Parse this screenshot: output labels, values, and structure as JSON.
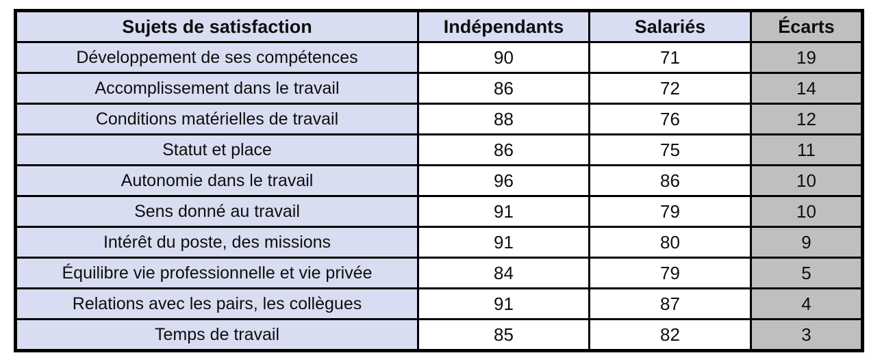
{
  "colors": {
    "header-bg": "#D9DDF1",
    "label-col-bg": "#D9DDF1",
    "value-col-bg": "#FFFFFF",
    "ecart-col-bg": "#BFBFBF",
    "border": "#000000",
    "text": "#0E0E0E"
  },
  "table": {
    "columns": [
      "Sujets de satisfaction",
      "Indépendants",
      "Salariés",
      "Écarts"
    ],
    "rows": [
      {
        "label": "Développement de ses compétences",
        "independants": "90",
        "salaries": "71",
        "ecart": "19"
      },
      {
        "label": "Accomplissement dans le travail",
        "independants": "86",
        "salaries": "72",
        "ecart": "14"
      },
      {
        "label": "Conditions matérielles de travail",
        "independants": "88",
        "salaries": "76",
        "ecart": "12"
      },
      {
        "label": "Statut et place",
        "independants": "86",
        "salaries": "75",
        "ecart": "11"
      },
      {
        "label": "Autonomie dans le travail",
        "independants": "96",
        "salaries": "86",
        "ecart": "10"
      },
      {
        "label": "Sens donné au travail",
        "independants": "91",
        "salaries": "79",
        "ecart": "10"
      },
      {
        "label": "Intérêt du poste, des missions",
        "independants": "91",
        "salaries": "80",
        "ecart": "9"
      },
      {
        "label": "Équilibre vie professionnelle et vie privée",
        "independants": "84",
        "salaries": "79",
        "ecart": "5"
      },
      {
        "label": "Relations avec les pairs, les collègues",
        "independants": "91",
        "salaries": "87",
        "ecart": "4"
      },
      {
        "label": "Temps de travail",
        "independants": "85",
        "salaries": "82",
        "ecart": "3"
      }
    ]
  },
  "chart_data": {
    "type": "table",
    "columns": [
      "Sujets de satisfaction",
      "Indépendants",
      "Salariés",
      "Écarts"
    ],
    "categories": [
      "Développement de ses compétences",
      "Accomplissement dans le travail",
      "Conditions matérielles de travail",
      "Statut et place",
      "Autonomie dans le travail",
      "Sens donné au travail",
      "Intérêt du poste, des missions",
      "Équilibre vie professionnelle et vie privée",
      "Relations avec les pairs, les collègues",
      "Temps de travail"
    ],
    "series": [
      {
        "name": "Indépendants",
        "values": [
          90,
          86,
          88,
          86,
          96,
          91,
          91,
          84,
          91,
          85
        ]
      },
      {
        "name": "Salariés",
        "values": [
          71,
          72,
          76,
          75,
          86,
          79,
          80,
          79,
          87,
          82
        ]
      },
      {
        "name": "Écarts",
        "values": [
          19,
          14,
          12,
          11,
          10,
          10,
          9,
          5,
          4,
          3
        ]
      }
    ]
  }
}
